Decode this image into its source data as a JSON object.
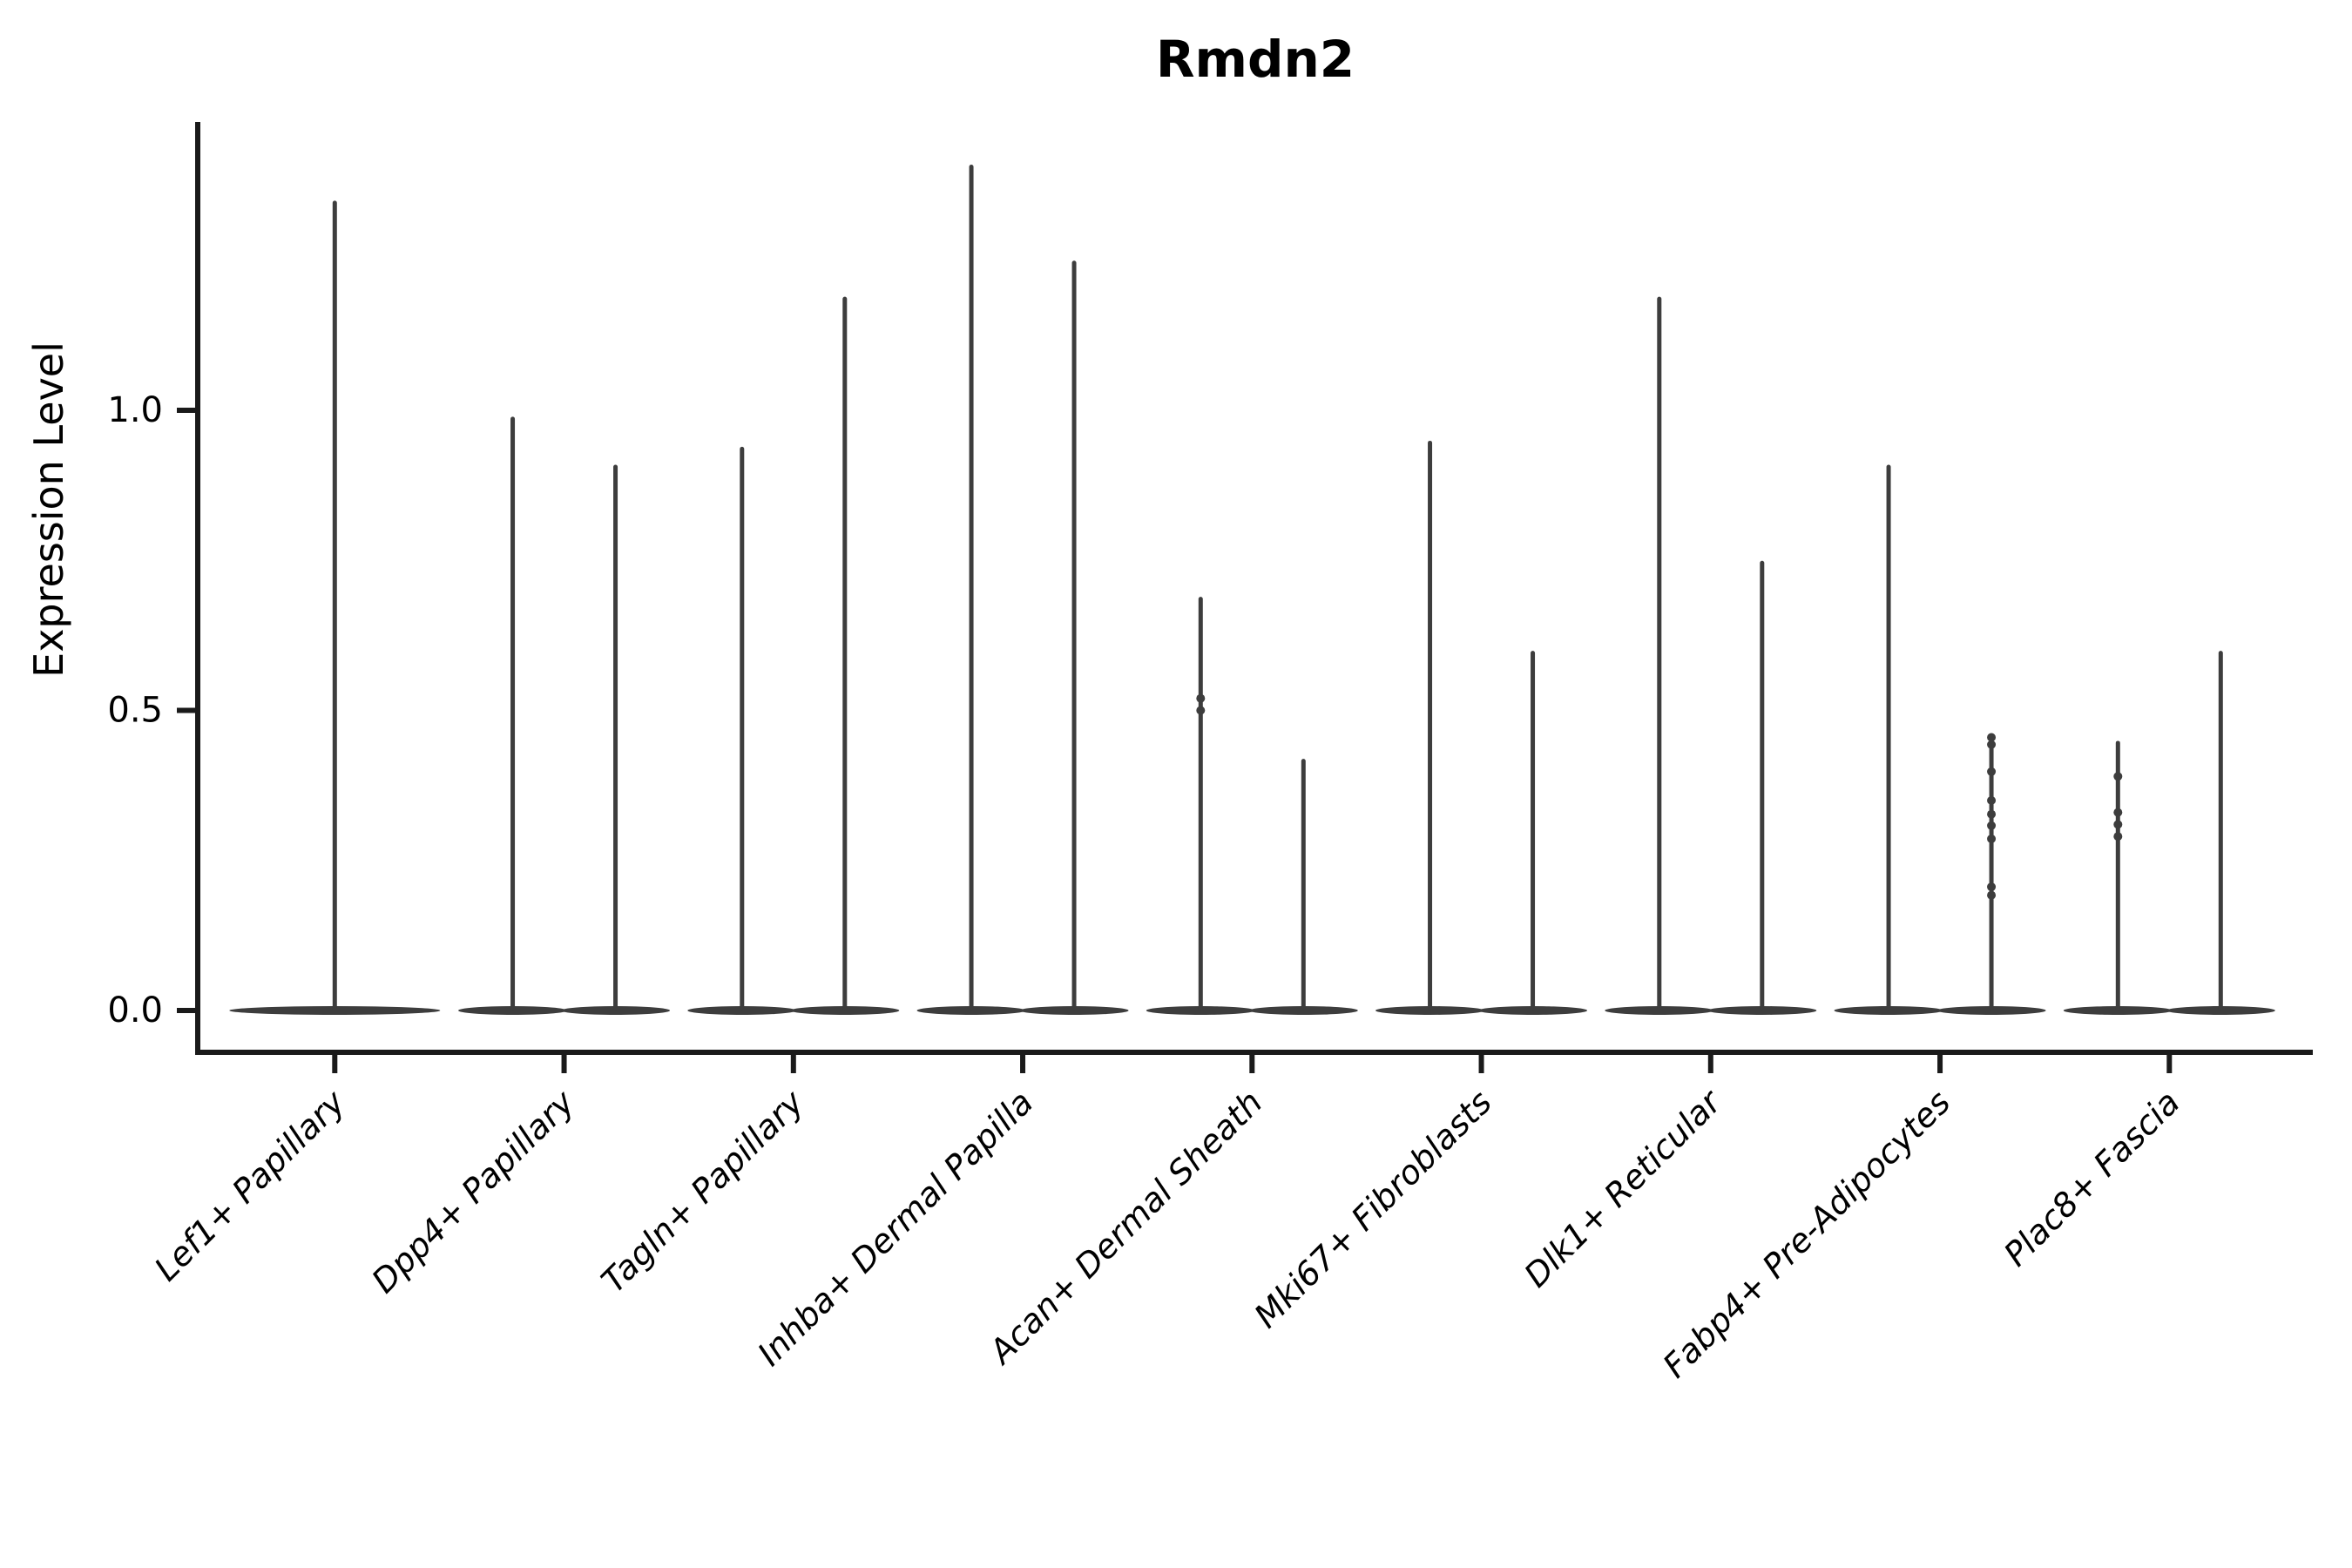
{
  "title": "Rmdn2",
  "axes": {
    "ylabel": "Expression Level",
    "ytick_labels": [
      "0.0",
      "0.5",
      "1.0"
    ],
    "ytick_values": [
      0.0,
      0.5,
      1.0
    ]
  },
  "style": {
    "violin_color": "#3d3d3d",
    "axis_color": "#1a1a1a",
    "background": "#ffffff"
  },
  "chart_data": {
    "type": "violin",
    "title": "Rmdn2",
    "xlabel": "",
    "ylabel": "Expression Level",
    "ylim": [
      -0.07,
      1.48
    ],
    "yticks": [
      0.0,
      0.5,
      1.0
    ],
    "ytick_labels": [
      "0.0",
      "0.5",
      "1.0"
    ],
    "grid": false,
    "legend": "none",
    "description": "Sparse single-cell expression violin plot: each violin is a wide flat lens at 0 with a thin KDE spike up to the maximum expression; most categories contain two violins side by side, Lef1+ Papillary contains one centered violin.",
    "categories": [
      "Lef1+ Papillary",
      "Dpp4+ Papillary",
      "Tagln+ Papillary",
      "Inhba+ Dermal Papilla",
      "Acan+ Dermal Sheath",
      "Mki67+ Fibroblasts",
      "Dlk1+ Reticular",
      "Fabp4+ Pre-Adipocytes",
      "Plac8+ Fascia"
    ],
    "groups": [
      {
        "category": "Lef1+ Papillary",
        "violins": [
          {
            "max": 1.35,
            "points": []
          }
        ]
      },
      {
        "category": "Dpp4+ Papillary",
        "violins": [
          {
            "max": 0.99,
            "points": []
          },
          {
            "max": 0.91,
            "points": []
          }
        ]
      },
      {
        "category": "Tagln+ Papillary",
        "violins": [
          {
            "max": 0.94,
            "points": []
          },
          {
            "max": 1.19,
            "points": []
          }
        ]
      },
      {
        "category": "Inhba+ Dermal Papilla",
        "violins": [
          {
            "max": 1.41,
            "points": []
          },
          {
            "max": 1.25,
            "points": []
          }
        ]
      },
      {
        "category": "Acan+ Dermal Sheath",
        "violins": [
          {
            "max": 0.69,
            "points": [
              0.52,
              0.5
            ]
          },
          {
            "max": 0.42,
            "points": []
          }
        ]
      },
      {
        "category": "Mki67+ Fibroblasts",
        "violins": [
          {
            "max": 0.95,
            "points": []
          },
          {
            "max": 0.6,
            "points": []
          }
        ]
      },
      {
        "category": "Dlk1+ Reticular",
        "violins": [
          {
            "max": 1.19,
            "points": []
          },
          {
            "max": 0.75,
            "points": []
          }
        ]
      },
      {
        "category": "Fabp4+ Pre-Adipocytes",
        "violins": [
          {
            "max": 0.91,
            "points": []
          },
          {
            "max": 0.46,
            "points": [
              0.455,
              0.443,
              0.398,
              0.35,
              0.327,
              0.308,
              0.286,
              0.206,
              0.192
            ]
          }
        ]
      },
      {
        "category": "Plac8+ Fascia",
        "violins": [
          {
            "max": 0.45,
            "points": [
              0.39,
              0.33,
              0.31,
              0.29
            ]
          },
          {
            "max": 0.6,
            "points": []
          }
        ]
      }
    ]
  }
}
